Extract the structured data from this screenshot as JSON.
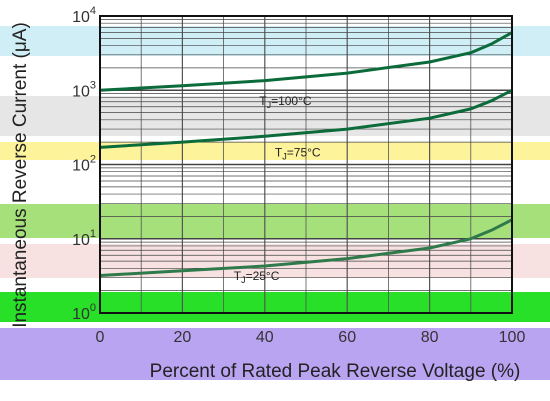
{
  "chart_data": {
    "type": "line",
    "title": "",
    "xlabel": "Percent of Rated Peak Reverse Voltage (%)",
    "ylabel": "Instantaneous Reverse Current (μA)",
    "x_ticks": [
      "0",
      "20",
      "40",
      "60",
      "80",
      "100"
    ],
    "y_ticks": [
      "10^0",
      "10^1",
      "10^2",
      "10^3",
      "10^4"
    ],
    "xlim": [
      0,
      100
    ],
    "ylim": [
      1,
      10000
    ],
    "y_scale": "log",
    "grid": true,
    "series": [
      {
        "name": "TJ=100°C",
        "x": [
          0,
          20,
          40,
          60,
          80,
          90,
          95,
          100
        ],
        "y": [
          1000,
          1150,
          1350,
          1700,
          2400,
          3200,
          4200,
          6000
        ]
      },
      {
        "name": "TJ=75°C",
        "x": [
          0,
          20,
          40,
          60,
          80,
          90,
          95,
          100
        ],
        "y": [
          170,
          200,
          240,
          300,
          420,
          560,
          720,
          1000
        ]
      },
      {
        "name": "TJ=25°C",
        "x": [
          0,
          20,
          40,
          60,
          80,
          90,
          95,
          100
        ],
        "y": [
          3.2,
          3.7,
          4.3,
          5.4,
          7.5,
          10,
          13,
          18
        ]
      }
    ],
    "annotations": [
      {
        "text": "TJ=100°C",
        "series": 0
      },
      {
        "text": "TJ=75°C",
        "series": 1
      },
      {
        "text": "TJ=25°C",
        "series": 2
      }
    ]
  }
}
